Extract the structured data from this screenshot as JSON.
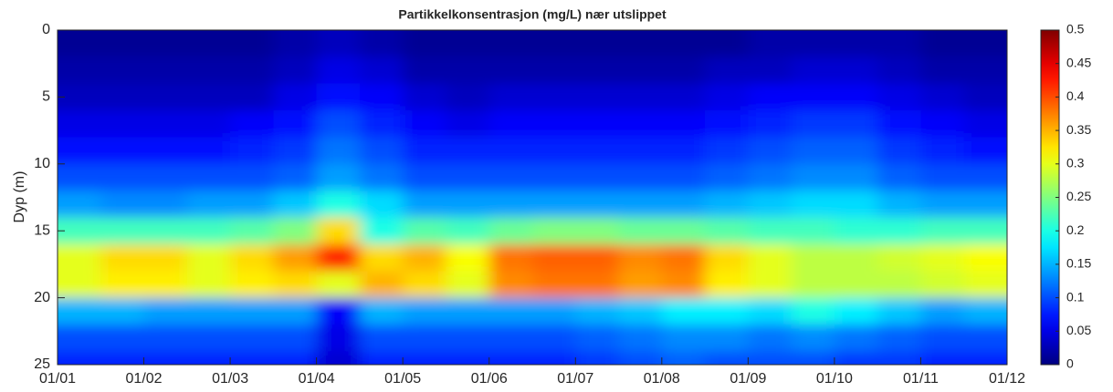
{
  "chart_data": {
    "type": "heatmap",
    "title": "Partikkelkonsentrasjon (mg/L) nær utslippet",
    "ylabel": "Dyp (m)",
    "ylim": [
      25,
      0
    ],
    "yticks": [
      0,
      5,
      10,
      15,
      20,
      25
    ],
    "xticks": [
      "01/01",
      "01/02",
      "01/03",
      "01/04",
      "01/05",
      "01/06",
      "01/07",
      "01/08",
      "01/09",
      "01/10",
      "01/11",
      "01/12"
    ],
    "colormap": "jet",
    "clim": [
      0,
      0.5
    ],
    "cticks": [
      0,
      0.05,
      0.1,
      0.15,
      0.2,
      0.25,
      0.3,
      0.35,
      0.4,
      0.45,
      0.5
    ],
    "y": [
      1,
      3,
      5,
      7,
      9,
      11,
      13,
      15,
      17,
      19,
      21,
      23,
      25
    ],
    "z": [
      [
        0.01,
        0.01,
        0.01,
        0.01,
        0.01,
        0.02,
        0.03,
        0.02,
        0.01,
        0.01,
        0.01,
        0.01,
        0.01,
        0.01,
        0.01,
        0.01,
        0.02,
        0.02,
        0.02,
        0.02,
        0.01,
        0.01
      ],
      [
        0.02,
        0.02,
        0.02,
        0.02,
        0.02,
        0.03,
        0.05,
        0.04,
        0.02,
        0.02,
        0.02,
        0.02,
        0.02,
        0.02,
        0.02,
        0.03,
        0.03,
        0.04,
        0.04,
        0.03,
        0.02,
        0.02
      ],
      [
        0.03,
        0.03,
        0.03,
        0.03,
        0.03,
        0.05,
        0.07,
        0.06,
        0.04,
        0.03,
        0.04,
        0.04,
        0.04,
        0.04,
        0.04,
        0.05,
        0.06,
        0.06,
        0.06,
        0.05,
        0.04,
        0.03
      ],
      [
        0.05,
        0.05,
        0.05,
        0.05,
        0.06,
        0.07,
        0.1,
        0.08,
        0.06,
        0.05,
        0.06,
        0.06,
        0.06,
        0.06,
        0.06,
        0.07,
        0.08,
        0.09,
        0.09,
        0.07,
        0.06,
        0.05
      ],
      [
        0.07,
        0.07,
        0.07,
        0.07,
        0.08,
        0.09,
        0.12,
        0.1,
        0.08,
        0.08,
        0.08,
        0.08,
        0.08,
        0.08,
        0.08,
        0.09,
        0.1,
        0.11,
        0.11,
        0.09,
        0.08,
        0.07
      ],
      [
        0.1,
        0.1,
        0.1,
        0.1,
        0.1,
        0.11,
        0.14,
        0.12,
        0.1,
        0.1,
        0.1,
        0.1,
        0.1,
        0.1,
        0.1,
        0.11,
        0.12,
        0.13,
        0.13,
        0.11,
        0.1,
        0.1
      ],
      [
        0.14,
        0.13,
        0.13,
        0.14,
        0.14,
        0.16,
        0.2,
        0.17,
        0.14,
        0.14,
        0.14,
        0.14,
        0.14,
        0.14,
        0.14,
        0.15,
        0.16,
        0.17,
        0.17,
        0.15,
        0.14,
        0.14
      ],
      [
        0.22,
        0.22,
        0.22,
        0.22,
        0.23,
        0.25,
        0.33,
        0.2,
        0.23,
        0.22,
        0.24,
        0.25,
        0.25,
        0.24,
        0.24,
        0.23,
        0.22,
        0.22,
        0.21,
        0.21,
        0.22,
        0.22
      ],
      [
        0.3,
        0.33,
        0.33,
        0.3,
        0.33,
        0.36,
        0.42,
        0.33,
        0.35,
        0.31,
        0.38,
        0.39,
        0.39,
        0.37,
        0.38,
        0.33,
        0.3,
        0.28,
        0.28,
        0.29,
        0.3,
        0.31
      ],
      [
        0.3,
        0.32,
        0.32,
        0.3,
        0.32,
        0.33,
        0.3,
        0.35,
        0.33,
        0.3,
        0.37,
        0.38,
        0.38,
        0.36,
        0.37,
        0.32,
        0.3,
        0.28,
        0.28,
        0.28,
        0.29,
        0.3
      ],
      [
        0.15,
        0.15,
        0.14,
        0.14,
        0.14,
        0.14,
        0.06,
        0.15,
        0.14,
        0.14,
        0.14,
        0.14,
        0.15,
        0.16,
        0.18,
        0.18,
        0.17,
        0.2,
        0.18,
        0.16,
        0.14,
        0.15
      ],
      [
        0.1,
        0.1,
        0.1,
        0.1,
        0.1,
        0.1,
        0.05,
        0.1,
        0.1,
        0.1,
        0.1,
        0.1,
        0.11,
        0.12,
        0.13,
        0.13,
        0.12,
        0.13,
        0.12,
        0.11,
        0.1,
        0.1
      ],
      [
        0.08,
        0.08,
        0.08,
        0.08,
        0.08,
        0.08,
        0.04,
        0.08,
        0.08,
        0.08,
        0.08,
        0.08,
        0.09,
        0.1,
        0.11,
        0.1,
        0.1,
        0.1,
        0.09,
        0.09,
        0.08,
        0.08
      ]
    ]
  }
}
